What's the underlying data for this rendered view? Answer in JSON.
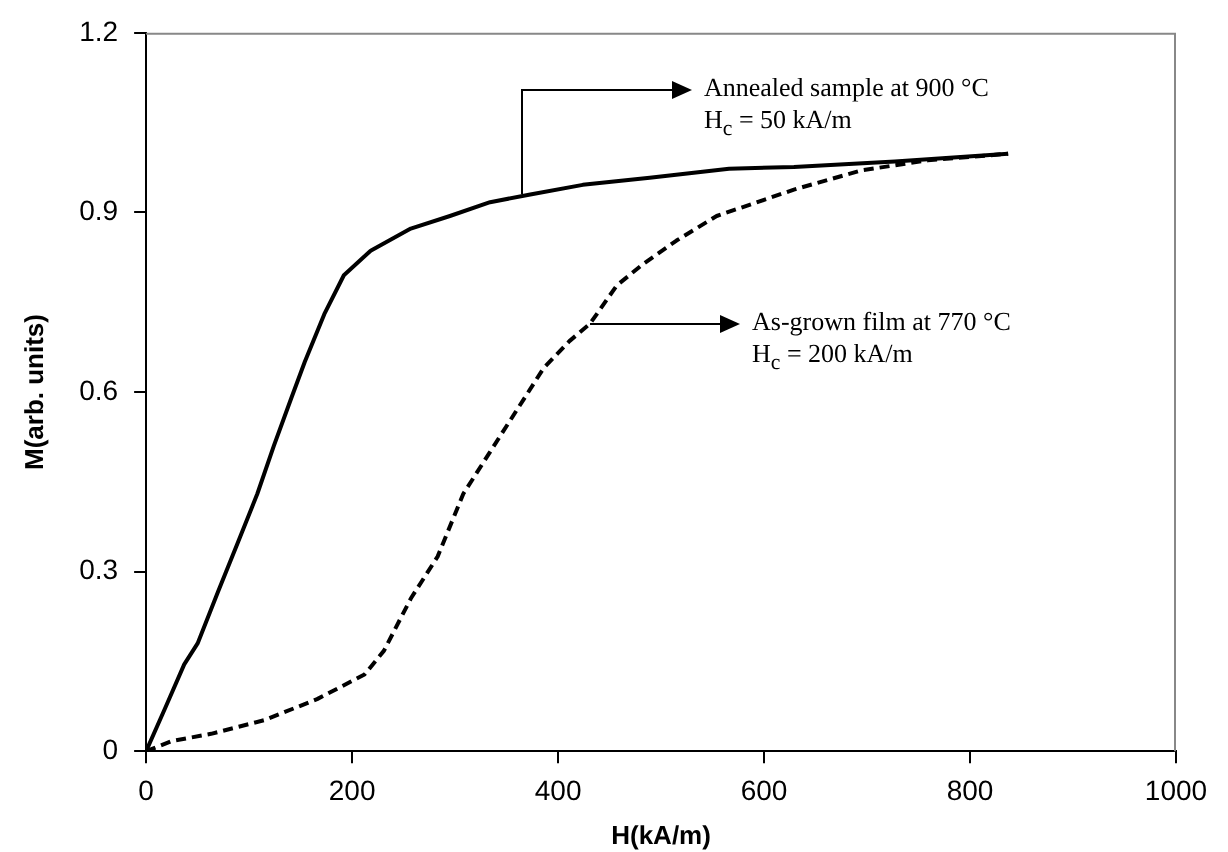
{
  "chart_data": {
    "type": "line",
    "xlabel": "H(kA/m)",
    "ylabel": "M(arb. units)",
    "xlim": [
      0,
      1000
    ],
    "xticks": [
      0,
      200,
      400,
      600,
      800,
      1000
    ],
    "ylim": [
      0,
      1.2
    ],
    "yticks": [
      0,
      0.3,
      0.6,
      0.9,
      1.2
    ],
    "grid": false,
    "legend": false,
    "marker": "none",
    "series": [
      {
        "color": "#000000",
        "line_style": "solid",
        "x": [
          0,
          18,
          37,
          50,
          70,
          89,
          108,
          124,
          141,
          154,
          173,
          192,
          218,
          257,
          295,
          334,
          373,
          424,
          489,
          566,
          629,
          727,
          837
        ],
        "values": [
          0,
          0.07,
          0.145,
          0.18,
          0.267,
          0.348,
          0.43,
          0.51,
          0.59,
          0.65,
          0.73,
          0.795,
          0.836,
          0.873,
          0.894,
          0.917,
          0.93,
          0.946,
          0.958,
          0.973,
          0.976,
          0.985,
          0.998
        ]
      },
      {
        "color": "#000000",
        "line_style": "dashed",
        "x": [
          0,
          25,
          63,
          115,
          166,
          212,
          231,
          257,
          283,
          308,
          334,
          360,
          386,
          411,
          431,
          457,
          482,
          515,
          554,
          629,
          694,
          759,
          837
        ],
        "values": [
          0,
          0.017,
          0.029,
          0.052,
          0.087,
          0.128,
          0.168,
          0.255,
          0.325,
          0.43,
          0.5,
          0.57,
          0.64,
          0.685,
          0.714,
          0.778,
          0.813,
          0.853,
          0.894,
          0.938,
          0.97,
          0.987,
          0.998
        ]
      }
    ],
    "annotations": [
      {
        "text": "Annealed sample at 900 °C\nH$_{c}$ = 50 kA/m",
        "x": 365,
        "y": 0.932
      },
      {
        "text": "As-grown film at 770 °C\nH$_{c}$ = 200 kA/m",
        "x": 431,
        "y": 0.714
      }
    ]
  }
}
